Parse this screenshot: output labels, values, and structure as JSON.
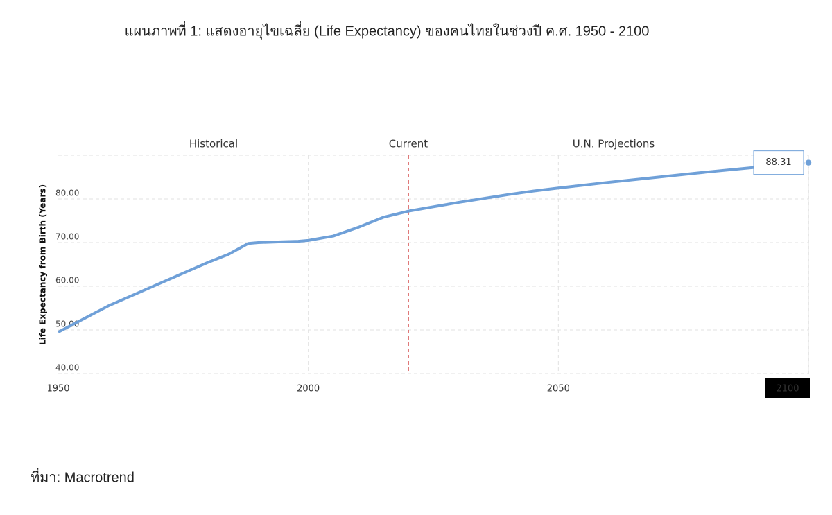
{
  "chart_data": {
    "type": "line",
    "title": "แผนภาพที่ 1: แสดงอายุไขเฉลี่ย (Life Expectancy) ของคนไทยในช่วงปี ค.ศ. 1950 - 2100",
    "y_label": "Life Expectancy from Birth (Years)",
    "annotations": [
      "Historical",
      "Current",
      "U.N. Projections"
    ],
    "current_x": 2020,
    "source": "ที่มา: Macrotrend",
    "x": [
      1950,
      1955,
      1960,
      1965,
      1970,
      1975,
      1980,
      1984,
      1988,
      1990,
      1995,
      1998,
      2000,
      2005,
      2010,
      2015,
      2020,
      2025,
      2030,
      2035,
      2040,
      2045,
      2050,
      2060,
      2070,
      2080,
      2090,
      2100
    ],
    "series": [
      {
        "name": "Life Expectancy",
        "color": "#6fa0d8",
        "values": [
          49.5,
          52.5,
          55.5,
          58,
          60.5,
          63,
          65.5,
          67.3,
          69.8,
          70,
          70.2,
          70.3,
          70.5,
          71.5,
          73.5,
          75.8,
          77.2,
          78.2,
          79.2,
          80.1,
          81,
          81.8,
          82.5,
          83.8,
          85,
          86.2,
          87.3,
          88.31
        ]
      }
    ],
    "xlim": [
      1950,
      2100
    ],
    "xticks": [
      1950,
      2000,
      2050,
      2100
    ],
    "ylim": [
      40,
      90
    ],
    "yticks": [
      {
        "value": 40,
        "label": "40.00"
      },
      {
        "value": 50,
        "label": "50.00"
      },
      {
        "value": 60,
        "label": "60.00"
      },
      {
        "value": 70,
        "label": "70.00"
      },
      {
        "value": 80,
        "label": "80.00"
      }
    ],
    "grid": true
  }
}
